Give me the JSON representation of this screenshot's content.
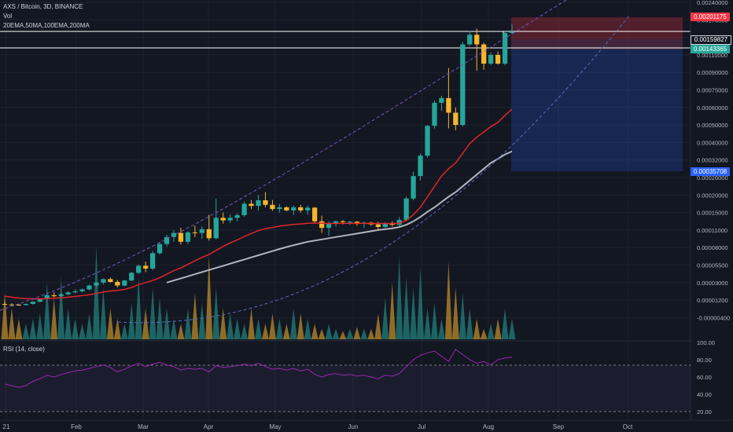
{
  "header": {
    "symbol_line": "AXS / Bitcoin, 3D, BINANCE",
    "vol_label": "Vol",
    "ma_label": "20EMA,50MA,100EMA,200MA",
    "rsi_label": "RSI (14, close)"
  },
  "price_tags": [
    {
      "label": "0.00201175",
      "color": "#f23645"
    },
    {
      "label": "0.00159827",
      "color": "#131722"
    },
    {
      "label": "0.00143365",
      "color": "#26a69a"
    },
    {
      "label": "0.00035708",
      "color": "#2962ff"
    }
  ],
  "x_axis_labels": [
    "21",
    "Feb",
    "Mar",
    "Apr",
    "May",
    "Jun",
    "Jul",
    "Aug",
    "Sep",
    "Oct"
  ],
  "colors": {
    "up": "#26a69a",
    "down": "#f7b52c",
    "ema20": "#e0262b",
    "ma50": "#b2b5be",
    "rsi": "#9c27b0",
    "fib": "#7e57c2"
  },
  "chart_data": {
    "type": "candlestick",
    "price_axis_ticks": [
      "0.00240000",
      "0.00170000",
      "0.00130000",
      "0.00110000",
      "0.00090000",
      "0.00075000",
      "0.00060000",
      "0.00050000",
      "0.00040000",
      "0.00032000",
      "0.00026000",
      "0.00020000",
      "0.00015000",
      "0.00011000",
      "0.00008000",
      "0.00005500",
      "0.00003000",
      "0.00001200",
      "-0.00000400"
    ],
    "rsi_axis_ticks": [
      "100.00",
      "80.00",
      "60.00",
      "40.00",
      "20.00"
    ],
    "rsi_levels": [
      70,
      30
    ],
    "candles": [
      {
        "o": 8.5e-06,
        "h": 9.5e-06,
        "l": 7.5e-06,
        "c": 8e-06
      },
      {
        "o": 8e-06,
        "h": 9.2e-06,
        "l": 7e-06,
        "c": 7.8e-06
      },
      {
        "o": 7.8e-06,
        "h": 8.8e-06,
        "l": 6.8e-06,
        "c": 7.5e-06
      },
      {
        "o": 7.5e-06,
        "h": 9e-06,
        "l": 7e-06,
        "c": 8.5e-06
      },
      {
        "o": 8.5e-06,
        "h": 1.1e-05,
        "l": 8e-06,
        "c": 1.05e-05
      },
      {
        "o": 1.05e-05,
        "h": 1.4e-05,
        "l": 1e-05,
        "c": 1.35e-05
      },
      {
        "o": 1.35e-05,
        "h": 1.8e-05,
        "l": 1.3e-05,
        "c": 1.7e-05
      },
      {
        "o": 1.7e-05,
        "h": 2e-05,
        "l": 1.5e-05,
        "c": 1.6e-05
      },
      {
        "o": 1.6e-05,
        "h": 1.9e-05,
        "l": 1.5e-05,
        "c": 1.8e-05
      },
      {
        "o": 1.8e-05,
        "h": 2.1e-05,
        "l": 1.7e-05,
        "c": 2e-05
      },
      {
        "o": 2e-05,
        "h": 2.3e-05,
        "l": 1.9e-05,
        "c": 2.1e-05
      },
      {
        "o": 2.1e-05,
        "h": 2.4e-05,
        "l": 2e-05,
        "c": 2.3e-05
      },
      {
        "o": 2.3e-05,
        "h": 2.8e-05,
        "l": 2.2e-05,
        "c": 2.7e-05
      },
      {
        "o": 2.7e-05,
        "h": 3.1e-05,
        "l": 2.6e-05,
        "c": 3e-05
      },
      {
        "o": 3e-05,
        "h": 3.6e-05,
        "l": 2.8e-05,
        "c": 3.5e-05
      },
      {
        "o": 3.5e-05,
        "h": 3.7e-05,
        "l": 3e-05,
        "c": 3.1e-05
      },
      {
        "o": 3.1e-05,
        "h": 3.4e-05,
        "l": 2.5e-05,
        "c": 2.7e-05
      },
      {
        "o": 2.7e-05,
        "h": 3.4e-05,
        "l": 2.6e-05,
        "c": 3.3e-05
      },
      {
        "o": 3.3e-05,
        "h": 4.5e-05,
        "l": 3.2e-05,
        "c": 4.4e-05
      },
      {
        "o": 4.4e-05,
        "h": 5.6e-05,
        "l": 4.2e-05,
        "c": 5.4e-05
      },
      {
        "o": 5.4e-05,
        "h": 6e-05,
        "l": 4.5e-05,
        "c": 5e-05
      },
      {
        "o": 5e-05,
        "h": 7.5e-05,
        "l": 4.8e-05,
        "c": 7.2e-05
      },
      {
        "o": 7.2e-05,
        "h": 9e-05,
        "l": 7e-05,
        "c": 8.6e-05
      },
      {
        "o": 8.6e-05,
        "h": 0.000102,
        "l": 8.2e-05,
        "c": 9.8e-05
      },
      {
        "o": 9.8e-05,
        "h": 0.00011,
        "l": 9e-05,
        "c": 0.000105
      },
      {
        "o": 0.000105,
        "h": 0.000115,
        "l": 8.5e-05,
        "c": 9e-05
      },
      {
        "o": 9e-05,
        "h": 0.000108,
        "l": 8.6e-05,
        "c": 0.000106
      },
      {
        "o": 0.000106,
        "h": 0.00012,
        "l": 9.8e-05,
        "c": 0.000105
      },
      {
        "o": 0.000105,
        "h": 0.000118,
        "l": 9.5e-05,
        "c": 0.000112
      },
      {
        "o": 0.000112,
        "h": 0.000145,
        "l": 9.2e-05,
        "c": 9.6e-05
      },
      {
        "o": 9.6e-05,
        "h": 0.00019,
        "l": 9.4e-05,
        "c": 0.000138
      },
      {
        "o": 0.000138,
        "h": 0.00015,
        "l": 0.000125,
        "c": 0.000132
      },
      {
        "o": 0.000132,
        "h": 0.000146,
        "l": 0.000126,
        "c": 0.000138
      },
      {
        "o": 0.000138,
        "h": 0.000148,
        "l": 0.00013,
        "c": 0.000144
      },
      {
        "o": 0.000144,
        "h": 0.000182,
        "l": 0.00014,
        "c": 0.000175
      },
      {
        "o": 0.000175,
        "h": 0.000186,
        "l": 0.00016,
        "c": 0.000169
      },
      {
        "o": 0.000169,
        "h": 0.0002,
        "l": 0.000155,
        "c": 0.000185
      },
      {
        "o": 0.000185,
        "h": 0.00021,
        "l": 0.000165,
        "c": 0.000172
      },
      {
        "o": 0.000172,
        "h": 0.000186,
        "l": 0.000155,
        "c": 0.00016
      },
      {
        "o": 0.00016,
        "h": 0.000175,
        "l": 0.00015,
        "c": 0.000165
      },
      {
        "o": 0.000165,
        "h": 0.000168,
        "l": 0.000154,
        "c": 0.000156
      },
      {
        "o": 0.000156,
        "h": 0.00017,
        "l": 0.000145,
        "c": 0.000165
      },
      {
        "o": 0.000165,
        "h": 0.000172,
        "l": 0.00015,
        "c": 0.000156
      },
      {
        "o": 0.000156,
        "h": 0.00017,
        "l": 0.000145,
        "c": 0.000164
      },
      {
        "o": 0.000164,
        "h": 0.000166,
        "l": 0.000125,
        "c": 0.00013
      },
      {
        "o": 0.00013,
        "h": 0.000143,
        "l": 0.000105,
        "c": 0.000115
      },
      {
        "o": 0.000115,
        "h": 0.00013,
        "l": 0.0001,
        "c": 0.000125
      },
      {
        "o": 0.000125,
        "h": 0.000132,
        "l": 0.000118,
        "c": 0.00013
      },
      {
        "o": 0.00013,
        "h": 0.000133,
        "l": 0.000123,
        "c": 0.000128
      },
      {
        "o": 0.000128,
        "h": 0.000131,
        "l": 0.000122,
        "c": 0.000129
      },
      {
        "o": 0.000129,
        "h": 0.000131,
        "l": 0.00012,
        "c": 0.000125
      },
      {
        "o": 0.000125,
        "h": 0.00013,
        "l": 0.000115,
        "c": 0.000127
      },
      {
        "o": 0.000127,
        "h": 0.000129,
        "l": 0.00012,
        "c": 0.000123
      },
      {
        "o": 0.000123,
        "h": 0.000129,
        "l": 0.00011,
        "c": 0.000117
      },
      {
        "o": 0.000117,
        "h": 0.000128,
        "l": 0.000115,
        "c": 0.000126
      },
      {
        "o": 0.000126,
        "h": 0.00013,
        "l": 0.000118,
        "c": 0.000122
      },
      {
        "o": 0.000122,
        "h": 0.00014,
        "l": 0.000115,
        "c": 0.000133
      },
      {
        "o": 0.000133,
        "h": 0.000195,
        "l": 0.00013,
        "c": 0.00019
      },
      {
        "o": 0.00019,
        "h": 0.00028,
        "l": 0.000185,
        "c": 0.000265
      },
      {
        "o": 0.000265,
        "h": 0.00035,
        "l": 0.00025,
        "c": 0.00034
      },
      {
        "o": 0.00034,
        "h": 0.0005,
        "l": 0.00033,
        "c": 0.000495
      },
      {
        "o": 0.000495,
        "h": 0.00066,
        "l": 0.00048,
        "c": 0.00064
      },
      {
        "o": 0.00064,
        "h": 0.0007,
        "l": 0.00058,
        "c": 0.00068
      },
      {
        "o": 0.00068,
        "h": 0.00095,
        "l": 0.00048,
        "c": 0.00057
      },
      {
        "o": 0.00057,
        "h": 0.0006,
        "l": 0.00047,
        "c": 0.0005
      },
      {
        "o": 0.0005,
        "h": 0.00125,
        "l": 0.00049,
        "c": 0.00122
      },
      {
        "o": 0.00122,
        "h": 0.00145,
        "l": 0.0012,
        "c": 0.00136
      },
      {
        "o": 0.00136,
        "h": 0.0015,
        "l": 0.00092,
        "c": 0.00122
      },
      {
        "o": 0.00122,
        "h": 0.00124,
        "l": 0.00093,
        "c": 0.001
      },
      {
        "o": 0.001,
        "h": 0.00113,
        "l": 0.00098,
        "c": 0.0011
      },
      {
        "o": 0.0011,
        "h": 0.00114,
        "l": 0.00099,
        "c": 0.001
      },
      {
        "o": 0.001,
        "h": 0.00145,
        "l": 0.00098,
        "c": 0.0014
      },
      {
        "o": 0.0014,
        "h": 0.0016,
        "l": 0.00138,
        "c": 0.0014336
      }
    ],
    "volume": [
      0.45,
      0.3,
      0.2,
      0.15,
      0.2,
      0.25,
      0.55,
      0.4,
      0.6,
      0.3,
      0.2,
      0.15,
      0.25,
      0.9,
      0.5,
      0.3,
      0.2,
      0.15,
      0.35,
      0.6,
      0.3,
      0.5,
      0.4,
      0.3,
      0.2,
      0.15,
      0.3,
      0.45,
      0.35,
      0.8,
      0.5,
      0.3,
      0.25,
      0.2,
      0.15,
      0.3,
      0.2,
      0.15,
      0.25,
      0.2,
      0.15,
      0.3,
      0.25,
      0.2,
      0.15,
      0.1,
      0.15,
      0.1,
      0.08,
      0.1,
      0.12,
      0.1,
      0.1,
      0.25,
      0.4,
      0.55,
      0.8,
      0.6,
      0.5,
      0.7,
      0.3,
      0.35,
      0.2,
      0.75,
      0.5,
      0.45,
      0.3,
      0.2,
      0.1,
      0.15,
      0.2,
      0.3,
      0.2
    ],
    "rsi": [
      52,
      50,
      48,
      50,
      55,
      58,
      62,
      60,
      63,
      65,
      67,
      68,
      70,
      72,
      74,
      71,
      66,
      69,
      73,
      76,
      72,
      75,
      77,
      74,
      72,
      68,
      70,
      69,
      70,
      66,
      73,
      71,
      72,
      73,
      75,
      73,
      76,
      72,
      69,
      70,
      68,
      70,
      67,
      69,
      63,
      60,
      63,
      64,
      62,
      63,
      61,
      62,
      60,
      58,
      62,
      61,
      64,
      72,
      80,
      85,
      88,
      90,
      84,
      78,
      92,
      86,
      80,
      76,
      78,
      74,
      80,
      82,
      83
    ],
    "ema20": [
      1.6e-05,
      1.5e-05,
      1.42e-05,
      1.36e-05,
      1.33e-05,
      1.33e-05,
      1.36e-05,
      1.4e-05,
      1.43e-05,
      1.5e-05,
      1.58e-05,
      1.66e-05,
      1.76e-05,
      1.88e-05,
      2.03e-05,
      2.14e-05,
      2.2e-05,
      2.3e-05,
      2.5e-05,
      2.8e-05,
      3e-05,
      3.3e-05,
      3.7e-05,
      4.2e-05,
      4.7e-05,
      5.1e-05,
      5.6e-05,
      6.1e-05,
      6.6e-05,
      7e-05,
      7.6e-05,
      8.2e-05,
      8.8e-05,
      9.3e-05,
      9.9e-05,
      0.000104,
      0.000109,
      0.000113,
      0.000116,
      0.000119,
      0.000121,
      0.000123,
      0.000124,
      0.0001255,
      0.000126,
      0.0001255,
      0.000125,
      0.000125,
      0.0001252,
      0.0001253,
      0.0001253,
      0.0001254,
      0.0001253,
      0.000125,
      0.000125,
      0.0001248,
      0.0001255,
      0.000132,
      0.000145,
      0.000165,
      0.000195,
      0.00023,
      0.000265,
      0.00029,
      0.00031,
      0.00035,
      0.000395,
      0.00043,
      0.00046,
      0.00049,
      0.000515,
      0.000555,
      0.00059
    ],
    "ma50": [
      null,
      null,
      null,
      null,
      null,
      null,
      null,
      null,
      null,
      null,
      null,
      null,
      null,
      null,
      null,
      null,
      null,
      null,
      null,
      null,
      null,
      null,
      null,
      3e-05,
      3.3e-05,
      3.6e-05,
      3.9e-05,
      4.2e-05,
      4.5e-05,
      4.8e-05,
      5.1e-05,
      5.4e-05,
      5.7e-05,
      6e-05,
      6.3e-05,
      6.6e-05,
      6.9e-05,
      7.2e-05,
      7.5e-05,
      7.8e-05,
      8.1e-05,
      8.4e-05,
      8.7e-05,
      9e-05,
      9.2e-05,
      9.4e-05,
      9.6e-05,
      9.8e-05,
      0.0001,
      0.000102,
      0.000104,
      0.000106,
      0.000108,
      0.00011,
      0.000112,
      0.000114,
      0.000117,
      0.000122,
      0.00013,
      0.00014,
      0.000152,
      0.000165,
      0.00018,
      0.000195,
      0.00021,
      0.00023,
      0.00025,
      0.00027,
      0.00029,
      0.00031,
      0.000325,
      0.000345,
      0.00036
    ]
  }
}
